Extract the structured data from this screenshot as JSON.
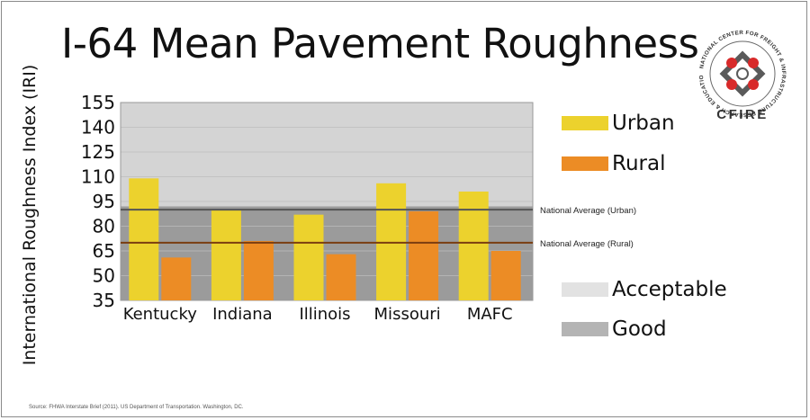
{
  "title": "I-64 Mean Pavement Roughness",
  "source": "Source: FHWA Interstate Brief (2011). US Department of Transportation. Washington, DC.",
  "logo": {
    "ring_text": "NATIONAL CENTER FOR FREIGHT & INFRASTRUCTURE RESEARCH & EDUCATION",
    "wordmark": "CFIRE"
  },
  "legend": {
    "urban": "Urban",
    "rural": "Rural",
    "acceptable": "Acceptable",
    "good": "Good"
  },
  "colors": {
    "urban": "#ecd22d",
    "rural": "#ec8c25",
    "acceptable": "#d4d4d4",
    "good": "#9b9b9b",
    "national_urban_line": "#555555",
    "national_rural_line": "#7a3d10",
    "logo_red": "#d82a2a"
  },
  "chart_data": {
    "type": "bar",
    "title": "I-64 Mean Pavement Roughness",
    "ylabel": "International Roughness Index (IRI)",
    "xlabel": "",
    "categories": [
      "Kentucky",
      "Indiana",
      "Illinois",
      "Missouri",
      "MAFC"
    ],
    "series": [
      {
        "name": "Urban",
        "values": [
          109,
          90,
          87,
          106,
          101
        ]
      },
      {
        "name": "Rural",
        "values": [
          61,
          71,
          63,
          89,
          65
        ]
      }
    ],
    "ylim": [
      35,
      155
    ],
    "yticks": [
      35,
      50,
      65,
      80,
      95,
      110,
      125,
      140,
      155
    ],
    "background_bands": [
      {
        "name": "Good",
        "from": 35,
        "to": 92
      },
      {
        "name": "Acceptable",
        "from": 92,
        "to": 155
      }
    ],
    "reference_lines": [
      {
        "label": "National Average (Urban)",
        "value": 90
      },
      {
        "label": "National Average (Rural)",
        "value": 70
      }
    ],
    "legend_position": "right"
  }
}
